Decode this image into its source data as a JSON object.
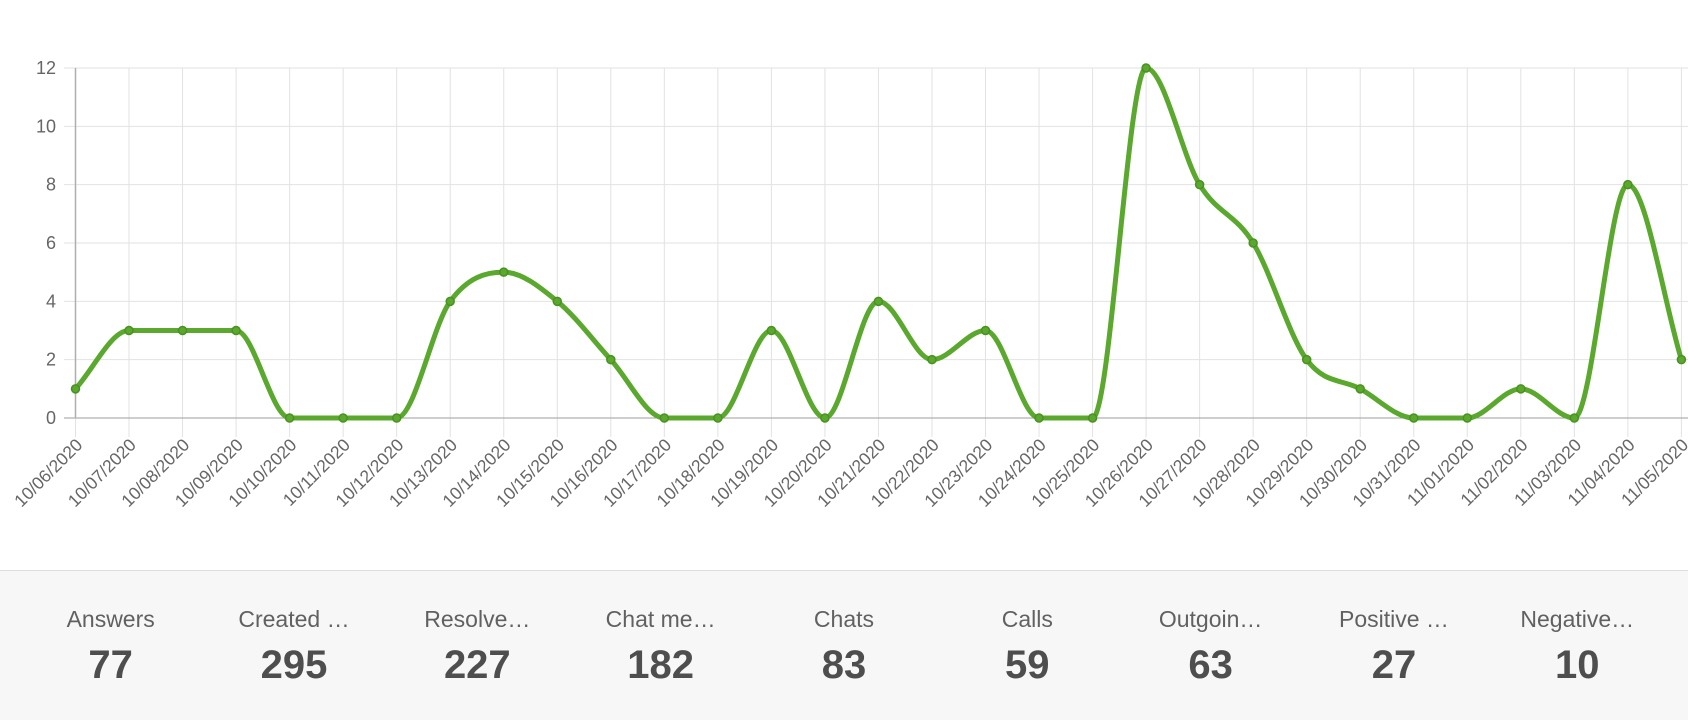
{
  "chart_data": {
    "type": "line",
    "x": [
      "10/06/2020",
      "10/07/2020",
      "10/08/2020",
      "10/09/2020",
      "10/10/2020",
      "10/11/2020",
      "10/12/2020",
      "10/13/2020",
      "10/14/2020",
      "10/15/2020",
      "10/16/2020",
      "10/17/2020",
      "10/18/2020",
      "10/19/2020",
      "10/20/2020",
      "10/21/2020",
      "10/22/2020",
      "10/23/2020",
      "10/24/2020",
      "10/25/2020",
      "10/26/2020",
      "10/27/2020",
      "10/28/2020",
      "10/29/2020",
      "10/30/2020",
      "10/31/2020",
      "11/01/2020",
      "11/02/2020",
      "11/03/2020",
      "11/04/2020",
      "11/05/2020"
    ],
    "values": [
      1,
      3,
      3,
      3,
      0,
      0,
      0,
      4,
      5,
      4,
      2,
      0,
      0,
      3,
      0,
      4,
      2,
      3,
      0,
      0,
      12,
      8,
      6,
      2,
      1,
      0,
      0,
      1,
      0,
      8,
      2
    ],
    "yticks": [
      0,
      2,
      4,
      6,
      8,
      10,
      12
    ],
    "ylim": [
      0,
      12
    ],
    "grid": true,
    "legend": false,
    "title": "",
    "xlabel": "",
    "ylabel": ""
  },
  "stats": [
    {
      "label": "Answers",
      "value": "77"
    },
    {
      "label": "Created …",
      "value": "295"
    },
    {
      "label": "Resolve…",
      "value": "227"
    },
    {
      "label": "Chat me…",
      "value": "182"
    },
    {
      "label": "Chats",
      "value": "83"
    },
    {
      "label": "Calls",
      "value": "59"
    },
    {
      "label": "Outgoin…",
      "value": "63"
    },
    {
      "label": "Positive …",
      "value": "27"
    },
    {
      "label": "Negative…",
      "value": "10"
    }
  ],
  "colors": {
    "line": "#5aa82d",
    "marker_stroke": "#4a9122",
    "gridline": "#e2e2e2",
    "baseline": "#9e9e9e",
    "axis_line": "#aeaeae",
    "tick_text": "#666666",
    "stat_label": "#616161",
    "stat_value": "#4e4e4e",
    "strip_bg": "#f7f7f7",
    "divider": "#dddddd"
  }
}
